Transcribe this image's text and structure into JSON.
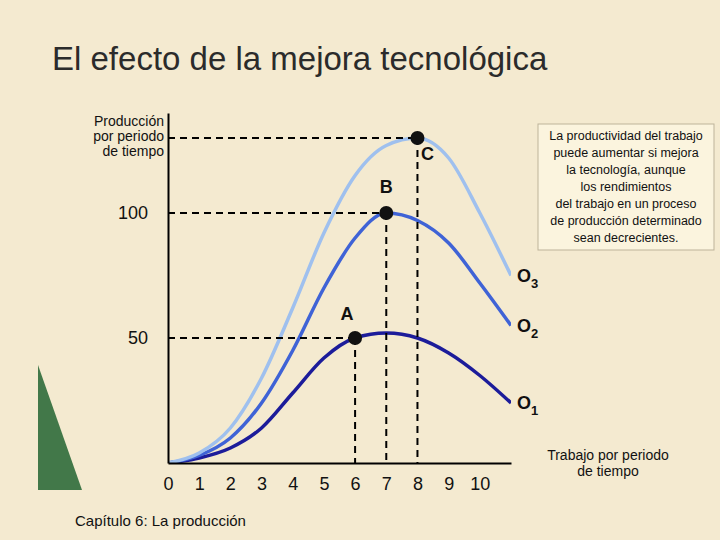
{
  "chart_data": {
    "type": "line",
    "title": "El efecto de la mejora tecnológica",
    "y_label": [
      "Producción",
      "por periodo",
      "de tiempo"
    ],
    "x_label": [
      "Trabajo por periodo",
      "de tiempo"
    ],
    "x": [
      0,
      1,
      2,
      3,
      4,
      5,
      6,
      7,
      8,
      9,
      10,
      11
    ],
    "series": [
      {
        "name": "O1",
        "color": "#1c1c9a",
        "values": [
          0,
          2,
          6,
          14,
          28,
          42,
          50,
          52,
          50,
          44,
          35,
          24
        ]
      },
      {
        "name": "O2",
        "color": "#3f63d6",
        "values": [
          0,
          3,
          10,
          24,
          45,
          70,
          90,
          100,
          97,
          88,
          72,
          55
        ]
      },
      {
        "name": "O3",
        "color": "#9fc0ee",
        "values": [
          0,
          4,
          14,
          34,
          62,
          92,
          115,
          127,
          130,
          122,
          100,
          75
        ]
      }
    ],
    "points": [
      {
        "label": "A",
        "x": 6,
        "y": 50
      },
      {
        "label": "B",
        "x": 7,
        "y": 100
      },
      {
        "label": "C",
        "x": 8,
        "y": 130
      }
    ],
    "xlim": [
      0,
      11
    ],
    "ylim": [
      0,
      140
    ],
    "xticks": [
      0,
      1,
      2,
      3,
      4,
      5,
      6,
      7,
      8,
      9,
      10
    ],
    "yticks": [
      50,
      100
    ],
    "annotation": [
      "La productividad del trabajo",
      "puede aumentar si mejora",
      "la tecnología, aunque",
      "los rendimientos",
      "del trabajo en un proceso",
      "de producción determinado",
      "sean decrecientes."
    ],
    "footer": "Capítulo 6: La producción"
  }
}
